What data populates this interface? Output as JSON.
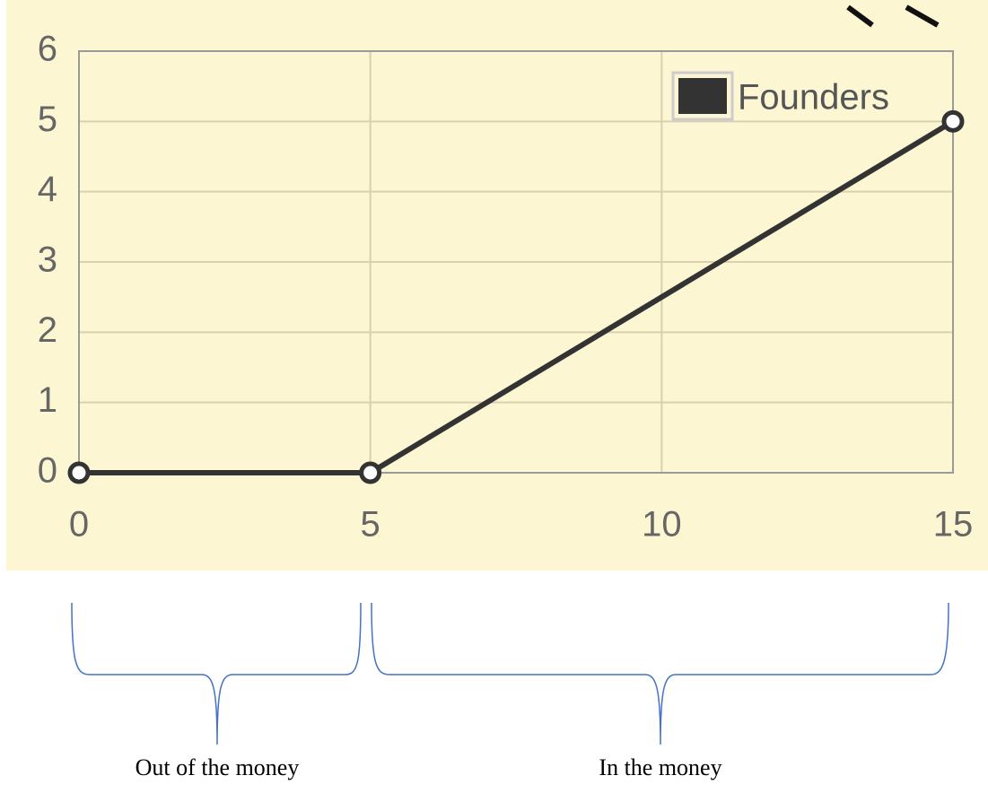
{
  "chart_data": {
    "type": "line",
    "x": [
      0,
      5,
      15
    ],
    "series": [
      {
        "name": "Founders",
        "color": "#333333",
        "values": [
          0,
          0,
          5
        ]
      }
    ],
    "xlim": [
      0,
      15
    ],
    "xticks": [
      0,
      5,
      10,
      15
    ],
    "ylim": [
      0,
      6
    ],
    "yticks": [
      0,
      1,
      2,
      3,
      4,
      5,
      6
    ],
    "grid": true,
    "legend": "top-right",
    "annotations": [
      "Out of the money",
      "In the money"
    ]
  }
}
